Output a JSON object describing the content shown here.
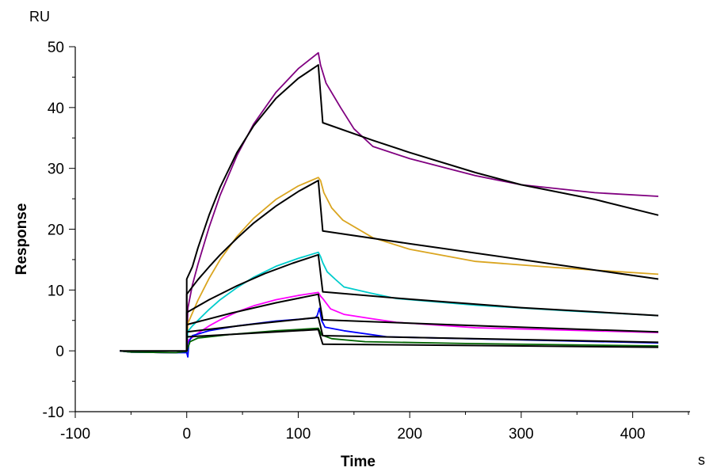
{
  "chart_data": {
    "type": "line",
    "title": "",
    "xlabel": "Time",
    "ylabel": "Response",
    "x_unit": "s",
    "y_unit": "RU",
    "xlim": [
      -100,
      450
    ],
    "ylim": [
      -10,
      50
    ],
    "x_ticks": [
      -100,
      0,
      100,
      200,
      300,
      400
    ],
    "y_ticks": [
      -10,
      0,
      10,
      20,
      30,
      40,
      50
    ],
    "grid": false,
    "legend": "none",
    "series": [
      {
        "color": "#800080",
        "kind": "measured",
        "points": [
          [
            -60,
            0
          ],
          [
            -50,
            -0.2
          ],
          [
            -10,
            -0.3
          ],
          [
            0,
            -0.1
          ],
          [
            1,
            7
          ],
          [
            5,
            10.8
          ],
          [
            10,
            14.2
          ],
          [
            20,
            20.3
          ],
          [
            30,
            25.6
          ],
          [
            45,
            32.1
          ],
          [
            60,
            37.3
          ],
          [
            80,
            42.5
          ],
          [
            100,
            46.4
          ],
          [
            118,
            49
          ],
          [
            120,
            47
          ],
          [
            125,
            44
          ],
          [
            138,
            40
          ],
          [
            150,
            36.5
          ],
          [
            167,
            33.6
          ],
          [
            200,
            31.6
          ],
          [
            259,
            28.8
          ],
          [
            300,
            27.3
          ],
          [
            366,
            26
          ],
          [
            423,
            25.4
          ]
        ]
      },
      {
        "color": "#DAA520",
        "kind": "measured",
        "points": [
          [
            -60,
            0
          ],
          [
            -50,
            -0.2
          ],
          [
            -10,
            -0.3
          ],
          [
            0,
            -0.1
          ],
          [
            1,
            4.5
          ],
          [
            5,
            6.2
          ],
          [
            10,
            8.3
          ],
          [
            20,
            11.9
          ],
          [
            30,
            15
          ],
          [
            45,
            18.8
          ],
          [
            60,
            21.8
          ],
          [
            80,
            24.9
          ],
          [
            100,
            27.1
          ],
          [
            118,
            28.5
          ],
          [
            120,
            28
          ],
          [
            123,
            26
          ],
          [
            130,
            23.5
          ],
          [
            140,
            21.5
          ],
          [
            167,
            18.6
          ],
          [
            200,
            16.7
          ],
          [
            259,
            14.7
          ],
          [
            330,
            13.7
          ],
          [
            423,
            12.6
          ]
        ]
      },
      {
        "color": "#00CCCC",
        "kind": "measured",
        "points": [
          [
            -60,
            0
          ],
          [
            -50,
            -0.2
          ],
          [
            -10,
            -0.3
          ],
          [
            0,
            -0.1
          ],
          [
            1,
            3.2
          ],
          [
            5,
            4.1
          ],
          [
            10,
            5
          ],
          [
            20,
            6.8
          ],
          [
            30,
            8.4
          ],
          [
            45,
            10.4
          ],
          [
            60,
            12.1
          ],
          [
            80,
            13.9
          ],
          [
            100,
            15.2
          ],
          [
            118,
            16.2
          ],
          [
            120,
            15.5
          ],
          [
            122,
            14.5
          ],
          [
            126,
            13
          ],
          [
            133,
            11.8
          ],
          [
            141,
            10.5
          ],
          [
            165,
            9.5
          ],
          [
            188,
            8.6
          ],
          [
            259,
            7.5
          ],
          [
            340,
            6.6
          ],
          [
            423,
            5.8
          ]
        ]
      },
      {
        "color": "#FF00FF",
        "kind": "measured",
        "points": [
          [
            -60,
            0
          ],
          [
            -50,
            -0.2
          ],
          [
            -10,
            -0.3
          ],
          [
            0,
            -0.1
          ],
          [
            1,
            1.7
          ],
          [
            5,
            2.2
          ],
          [
            10,
            2.9
          ],
          [
            20,
            4.1
          ],
          [
            30,
            5.1
          ],
          [
            45,
            6.4
          ],
          [
            60,
            7.4
          ],
          [
            80,
            8.4
          ],
          [
            100,
            9.1
          ],
          [
            118,
            9.6
          ],
          [
            120,
            9
          ],
          [
            122,
            8.6
          ],
          [
            129,
            6.9
          ],
          [
            141,
            6
          ],
          [
            165,
            5.3
          ],
          [
            188,
            4.7
          ],
          [
            259,
            3.8
          ],
          [
            340,
            3.4
          ],
          [
            423,
            3.0
          ]
        ]
      },
      {
        "color": "#0000FF",
        "kind": "measured",
        "points": [
          [
            -60,
            0
          ],
          [
            -50,
            -0.2
          ],
          [
            -10,
            -0.3
          ],
          [
            0,
            -0.3
          ],
          [
            1,
            -1
          ],
          [
            2,
            1.5
          ],
          [
            5,
            2.5
          ],
          [
            20,
            3.3
          ],
          [
            45,
            4.1
          ],
          [
            80,
            4.9
          ],
          [
            115,
            5.4
          ],
          [
            117,
            5.8
          ],
          [
            119,
            7
          ],
          [
            121,
            5
          ],
          [
            124,
            3.9
          ],
          [
            141,
            3.3
          ],
          [
            180,
            2.3
          ],
          [
            300,
            1.8
          ],
          [
            423,
            1.3
          ]
        ]
      },
      {
        "color": "#006400",
        "kind": "measured",
        "points": [
          [
            -60,
            0
          ],
          [
            -50,
            -0.2
          ],
          [
            -10,
            -0.3
          ],
          [
            0,
            -0.1
          ],
          [
            1,
            0.5
          ],
          [
            3,
            1.5
          ],
          [
            10,
            2.1
          ],
          [
            40,
            2.7
          ],
          [
            80,
            3.3
          ],
          [
            118,
            3.7
          ],
          [
            121,
            2.6
          ],
          [
            130,
            2
          ],
          [
            160,
            1.5
          ],
          [
            250,
            1.2
          ],
          [
            423,
            0.8
          ]
        ]
      },
      {
        "color": "#000000",
        "kind": "fit",
        "points": [
          [
            -60,
            0
          ],
          [
            0,
            0
          ],
          [
            0,
            11.8
          ],
          [
            5,
            13.8
          ],
          [
            10,
            16.9
          ],
          [
            20,
            22.3
          ],
          [
            30,
            26.9
          ],
          [
            45,
            32.6
          ],
          [
            60,
            37
          ],
          [
            80,
            41.5
          ],
          [
            100,
            44.8
          ],
          [
            118,
            47
          ],
          [
            122,
            37.5
          ],
          [
            167,
            34.6
          ],
          [
            200,
            32.6
          ],
          [
            259,
            29.3
          ],
          [
            300,
            27.3
          ],
          [
            366,
            24.9
          ],
          [
            423,
            22.3
          ]
        ]
      },
      {
        "color": "#000000",
        "kind": "fit",
        "points": [
          [
            0,
            0
          ],
          [
            0,
            9.3
          ],
          [
            10,
            11.7
          ],
          [
            20,
            13.8
          ],
          [
            30,
            15.8
          ],
          [
            45,
            18.5
          ],
          [
            60,
            21
          ],
          [
            80,
            23.8
          ],
          [
            100,
            26.2
          ],
          [
            118,
            28
          ],
          [
            122,
            19.7
          ],
          [
            200,
            17.6
          ],
          [
            300,
            15
          ],
          [
            423,
            11.8
          ]
        ]
      },
      {
        "color": "#000000",
        "kind": "fit",
        "points": [
          [
            0,
            0
          ],
          [
            0,
            6.3
          ],
          [
            20,
            8.4
          ],
          [
            45,
            10.7
          ],
          [
            70,
            12.7
          ],
          [
            95,
            14.4
          ],
          [
            118,
            15.8
          ],
          [
            122,
            9.7
          ],
          [
            200,
            8.5
          ],
          [
            300,
            7.1
          ],
          [
            423,
            5.8
          ]
        ]
      },
      {
        "color": "#000000",
        "kind": "fit",
        "points": [
          [
            0,
            0
          ],
          [
            0,
            4.3
          ],
          [
            40,
            6.2
          ],
          [
            80,
            7.9
          ],
          [
            118,
            9.3
          ],
          [
            122,
            5.1
          ],
          [
            250,
            4.2
          ],
          [
            423,
            3.1
          ]
        ]
      },
      {
        "color": "#000000",
        "kind": "fit",
        "points": [
          [
            0,
            0
          ],
          [
            0,
            3.1
          ],
          [
            60,
            4.4
          ],
          [
            118,
            5.5
          ],
          [
            122,
            2.5
          ],
          [
            423,
            1.4
          ]
        ]
      },
      {
        "color": "#000000",
        "kind": "fit",
        "points": [
          [
            0,
            0
          ],
          [
            0,
            2.3
          ],
          [
            118,
            3.5
          ],
          [
            122,
            1.1
          ],
          [
            423,
            0.6
          ]
        ]
      }
    ]
  }
}
